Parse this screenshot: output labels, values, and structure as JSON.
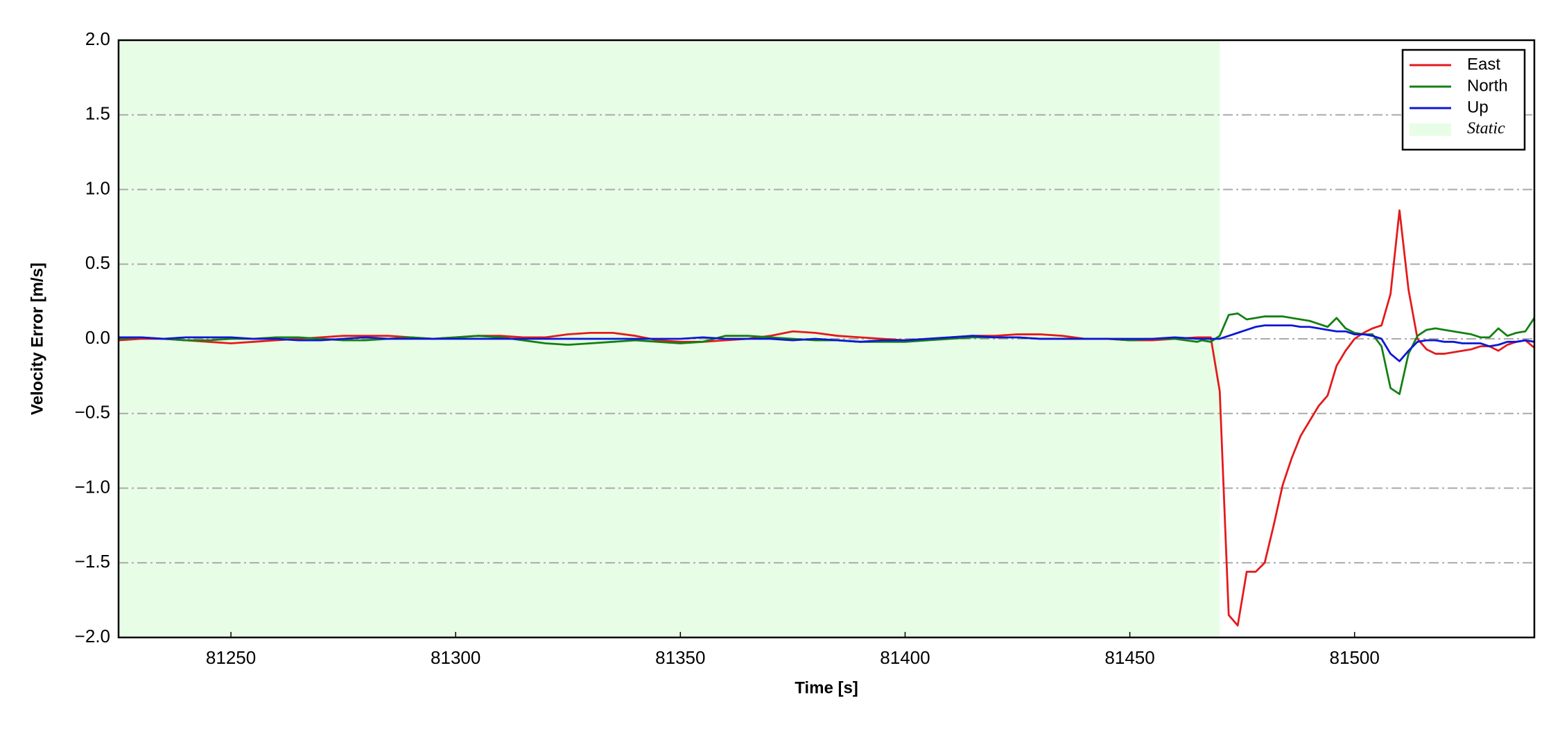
{
  "chart_data": {
    "type": "line",
    "xlabel": "Time [s]",
    "ylabel": "Velocity Error [m/s]",
    "x": [
      81225,
      81230,
      81235,
      81240,
      81245,
      81250,
      81255,
      81260,
      81265,
      81270,
      81275,
      81280,
      81285,
      81290,
      81295,
      81300,
      81305,
      81310,
      81315,
      81320,
      81325,
      81330,
      81335,
      81340,
      81345,
      81350,
      81355,
      81360,
      81365,
      81370,
      81375,
      81380,
      81385,
      81390,
      81395,
      81400,
      81405,
      81410,
      81415,
      81420,
      81425,
      81430,
      81435,
      81440,
      81445,
      81450,
      81455,
      81460,
      81465,
      81466,
      81468,
      81470,
      81472,
      81474,
      81476,
      81478,
      81480,
      81482,
      81484,
      81486,
      81488,
      81490,
      81492,
      81494,
      81496,
      81498,
      81500,
      81502,
      81504,
      81506,
      81508,
      81510,
      81512,
      81514,
      81516,
      81518,
      81520,
      81522,
      81524,
      81526,
      81528,
      81530,
      81532,
      81534,
      81536,
      81538,
      81540
    ],
    "series": [
      {
        "name": "East",
        "color": "#e41a1c",
        "values": [
          -0.01,
          0.0,
          0.0,
          -0.01,
          -0.02,
          -0.03,
          -0.02,
          -0.01,
          0.0,
          0.01,
          0.02,
          0.02,
          0.02,
          0.01,
          0.0,
          0.01,
          0.02,
          0.02,
          0.01,
          0.01,
          0.03,
          0.04,
          0.04,
          0.02,
          -0.01,
          -0.02,
          -0.02,
          -0.01,
          0.0,
          0.02,
          0.05,
          0.04,
          0.02,
          0.01,
          0.0,
          -0.01,
          0.0,
          0.01,
          0.02,
          0.02,
          0.03,
          0.03,
          0.02,
          0.0,
          0.0,
          -0.01,
          -0.01,
          0.0,
          0.01,
          0.01,
          0.01,
          -0.35,
          -1.85,
          -1.92,
          -1.56,
          -1.56,
          -1.5,
          -1.25,
          -0.98,
          -0.8,
          -0.65,
          -0.55,
          -0.45,
          -0.38,
          -0.18,
          -0.08,
          0.0,
          0.04,
          0.07,
          0.09,
          0.3,
          0.86,
          0.33,
          0.0,
          -0.07,
          -0.1,
          -0.1,
          -0.09,
          -0.08,
          -0.07,
          -0.05,
          -0.05,
          -0.08,
          -0.04,
          -0.02,
          -0.01,
          -0.06
        ]
      },
      {
        "name": "North",
        "color": "#138013",
        "values": [
          0.0,
          0.01,
          0.0,
          -0.01,
          -0.01,
          0.0,
          0.0,
          0.01,
          0.01,
          0.0,
          -0.01,
          -0.01,
          0.0,
          0.01,
          0.0,
          0.01,
          0.02,
          0.01,
          -0.01,
          -0.03,
          -0.04,
          -0.03,
          -0.02,
          -0.01,
          -0.02,
          -0.03,
          -0.02,
          0.02,
          0.02,
          0.01,
          0.0,
          -0.01,
          -0.01,
          -0.02,
          -0.02,
          -0.02,
          -0.01,
          0.0,
          0.01,
          0.01,
          0.01,
          0.0,
          0.0,
          0.0,
          0.0,
          -0.01,
          0.0,
          0.0,
          -0.02,
          -0.01,
          -0.02,
          0.02,
          0.16,
          0.17,
          0.13,
          0.14,
          0.15,
          0.15,
          0.15,
          0.14,
          0.13,
          0.12,
          0.1,
          0.08,
          0.14,
          0.07,
          0.04,
          0.03,
          0.03,
          -0.05,
          -0.33,
          -0.37,
          -0.1,
          0.02,
          0.06,
          0.07,
          0.06,
          0.05,
          0.04,
          0.03,
          0.01,
          0.01,
          0.07,
          0.02,
          0.04,
          0.05,
          0.14
        ]
      },
      {
        "name": "Up",
        "color": "#0d17d6",
        "values": [
          0.01,
          0.01,
          0.0,
          0.01,
          0.01,
          0.01,
          0.0,
          0.0,
          -0.01,
          -0.01,
          0.0,
          0.01,
          0.0,
          0.0,
          0.0,
          0.0,
          0.0,
          0.0,
          0.0,
          0.0,
          0.0,
          0.0,
          0.0,
          0.0,
          0.0,
          0.0,
          0.01,
          0.0,
          0.0,
          0.0,
          -0.01,
          0.0,
          -0.01,
          -0.02,
          -0.01,
          -0.01,
          0.0,
          0.01,
          0.02,
          0.01,
          0.01,
          0.0,
          0.0,
          0.0,
          0.0,
          0.0,
          0.0,
          0.01,
          0.0,
          0.0,
          0.0,
          0.0,
          0.02,
          0.04,
          0.06,
          0.08,
          0.09,
          0.09,
          0.09,
          0.09,
          0.08,
          0.08,
          0.07,
          0.06,
          0.05,
          0.05,
          0.03,
          0.03,
          0.02,
          0.0,
          -0.1,
          -0.15,
          -0.08,
          -0.02,
          -0.01,
          -0.01,
          -0.02,
          -0.02,
          -0.03,
          -0.03,
          -0.03,
          -0.05,
          -0.04,
          -0.02,
          -0.02,
          -0.01,
          -0.02
        ]
      }
    ],
    "span": {
      "name": "Static",
      "color": "#e8fde6",
      "xrange": [
        81225,
        81470
      ]
    },
    "xlim": [
      81225,
      81540
    ],
    "xticks": [
      81250,
      81300,
      81350,
      81400,
      81450,
      81500
    ],
    "ylim": [
      -2,
      2
    ],
    "yticks": [
      {
        "value": -2,
        "label": "−2.0"
      },
      {
        "value": -1.5,
        "label": "−1.5"
      },
      {
        "value": -1,
        "label": "−1.0"
      },
      {
        "value": -0.5,
        "label": "−0.5"
      },
      {
        "value": 0,
        "label": "0.0"
      },
      0.5,
      {
        "value": 1,
        "label": "1.0"
      },
      1.5,
      {
        "value": 2,
        "label": "2.0"
      }
    ],
    "grid": "y",
    "legend": "upper right"
  }
}
